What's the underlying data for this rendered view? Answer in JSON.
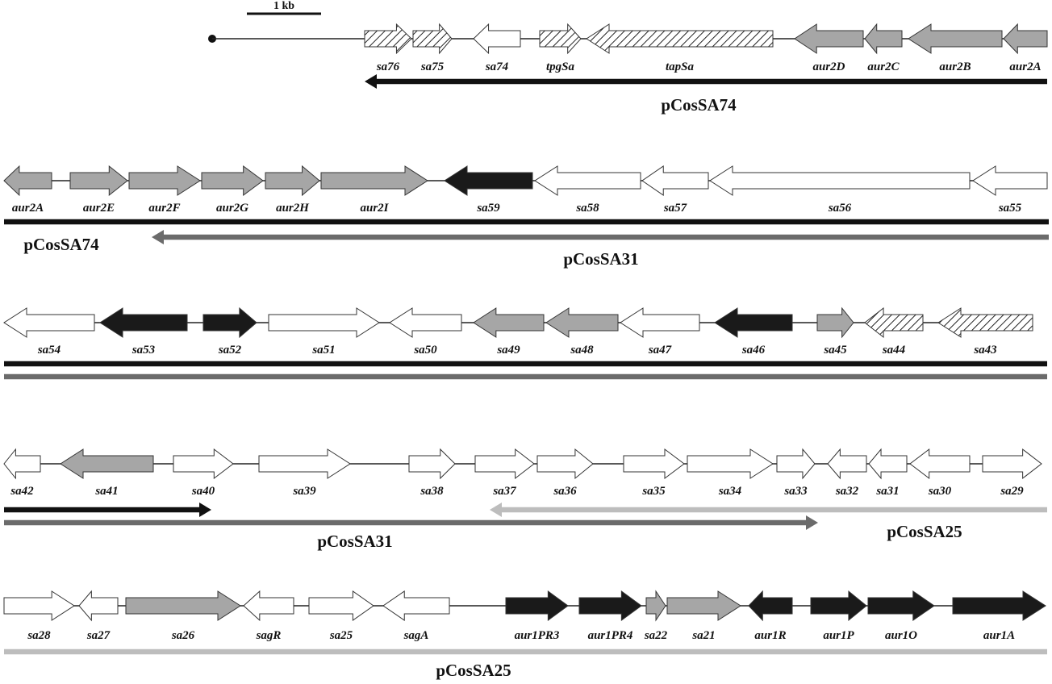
{
  "scale_bar": {
    "label": "1 kb"
  },
  "colors": {
    "white": "#ffffff",
    "gray": "#a6a6a6",
    "black": "#1a1a1a",
    "hatch": "hatched",
    "bar_black": "#111111",
    "bar_dark_gray": "#6b6b6b",
    "bar_light_gray": "#bdbdbd"
  },
  "rows": [
    {
      "genes": [
        {
          "name": "sa76",
          "dir": "right",
          "fill": "hatch"
        },
        {
          "name": "sa75",
          "dir": "right",
          "fill": "hatch"
        },
        {
          "name": "sa74",
          "dir": "left",
          "fill": "white"
        },
        {
          "name": "tpgSa",
          "dir": "right",
          "fill": "hatch"
        },
        {
          "name": "tapSa",
          "dir": "left",
          "fill": "hatch"
        },
        {
          "name": "aur2D",
          "dir": "left",
          "fill": "gray"
        },
        {
          "name": "aur2C",
          "dir": "left",
          "fill": "gray"
        },
        {
          "name": "aur2B",
          "dir": "left",
          "fill": "gray"
        },
        {
          "name": "aur2A",
          "dir": "left",
          "fill": "gray"
        }
      ],
      "clones": [
        {
          "name": "pCosSA74",
          "color": "bar_black",
          "arrow": "left"
        }
      ]
    },
    {
      "genes": [
        {
          "name": "aur2A",
          "dir": "left",
          "fill": "gray"
        },
        {
          "name": "aur2E",
          "dir": "right",
          "fill": "gray"
        },
        {
          "name": "aur2F",
          "dir": "right",
          "fill": "gray"
        },
        {
          "name": "aur2G",
          "dir": "right",
          "fill": "gray"
        },
        {
          "name": "aur2H",
          "dir": "right",
          "fill": "gray"
        },
        {
          "name": "aur2I",
          "dir": "right",
          "fill": "gray"
        },
        {
          "name": "sa59",
          "dir": "left",
          "fill": "black"
        },
        {
          "name": "sa58",
          "dir": "left",
          "fill": "white"
        },
        {
          "name": "sa57",
          "dir": "left",
          "fill": "white"
        },
        {
          "name": "sa56",
          "dir": "left",
          "fill": "white"
        },
        {
          "name": "sa55",
          "dir": "left",
          "fill": "white"
        }
      ],
      "clones": [
        {
          "name": "pCosSA74",
          "color": "bar_black",
          "arrow": "none"
        },
        {
          "name": "pCosSA31",
          "color": "bar_dark_gray",
          "arrow": "left"
        }
      ]
    },
    {
      "genes": [
        {
          "name": "sa54",
          "dir": "left",
          "fill": "white"
        },
        {
          "name": "sa53",
          "dir": "left",
          "fill": "black"
        },
        {
          "name": "sa52",
          "dir": "right",
          "fill": "black"
        },
        {
          "name": "sa51",
          "dir": "right",
          "fill": "white"
        },
        {
          "name": "sa50",
          "dir": "left",
          "fill": "white"
        },
        {
          "name": "sa49",
          "dir": "left",
          "fill": "gray"
        },
        {
          "name": "sa48",
          "dir": "left",
          "fill": "gray"
        },
        {
          "name": "sa47",
          "dir": "left",
          "fill": "white"
        },
        {
          "name": "sa46",
          "dir": "left",
          "fill": "black"
        },
        {
          "name": "sa45",
          "dir": "right",
          "fill": "gray"
        },
        {
          "name": "sa44",
          "dir": "left",
          "fill": "hatch"
        },
        {
          "name": "sa43",
          "dir": "left",
          "fill": "hatch"
        }
      ],
      "clones": []
    },
    {
      "genes": [
        {
          "name": "sa42",
          "dir": "left",
          "fill": "white"
        },
        {
          "name": "sa41",
          "dir": "left",
          "fill": "gray"
        },
        {
          "name": "sa40",
          "dir": "right",
          "fill": "white"
        },
        {
          "name": "sa39",
          "dir": "right",
          "fill": "white"
        },
        {
          "name": "sa38",
          "dir": "right",
          "fill": "white"
        },
        {
          "name": "sa37",
          "dir": "right",
          "fill": "white"
        },
        {
          "name": "sa36",
          "dir": "right",
          "fill": "white"
        },
        {
          "name": "sa35",
          "dir": "right",
          "fill": "white"
        },
        {
          "name": "sa34",
          "dir": "right",
          "fill": "white"
        },
        {
          "name": "sa33",
          "dir": "right",
          "fill": "white"
        },
        {
          "name": "sa32",
          "dir": "left",
          "fill": "white"
        },
        {
          "name": "sa31",
          "dir": "left",
          "fill": "white"
        },
        {
          "name": "sa30",
          "dir": "left",
          "fill": "white"
        },
        {
          "name": "sa29",
          "dir": "right",
          "fill": "white"
        }
      ],
      "clones": [
        {
          "name": "pCosSA31",
          "color": "bar_dark_gray",
          "arrow": "right"
        },
        {
          "name": "pCosSA25",
          "color": "bar_light_gray",
          "arrow": "left"
        }
      ]
    },
    {
      "genes": [
        {
          "name": "sa28",
          "dir": "right",
          "fill": "white"
        },
        {
          "name": "sa27",
          "dir": "left",
          "fill": "white"
        },
        {
          "name": "sa26",
          "dir": "right",
          "fill": "gray"
        },
        {
          "name": "sagR",
          "dir": "left",
          "fill": "white"
        },
        {
          "name": "sa25",
          "dir": "right",
          "fill": "white"
        },
        {
          "name": "sagA",
          "dir": "left",
          "fill": "white"
        },
        {
          "name": "aur1PR3",
          "dir": "right",
          "fill": "black"
        },
        {
          "name": "aur1PR4",
          "dir": "right",
          "fill": "black"
        },
        {
          "name": "sa22",
          "dir": "right",
          "fill": "gray"
        },
        {
          "name": "sa21",
          "dir": "right",
          "fill": "gray"
        },
        {
          "name": "aur1R",
          "dir": "left",
          "fill": "black"
        },
        {
          "name": "aur1P",
          "dir": "right",
          "fill": "black"
        },
        {
          "name": "aur1O",
          "dir": "right",
          "fill": "black"
        },
        {
          "name": "aur1A",
          "dir": "right",
          "fill": "black"
        }
      ],
      "clones": [
        {
          "name": "pCosSA25",
          "color": "bar_light_gray",
          "arrow": "none"
        }
      ]
    }
  ]
}
